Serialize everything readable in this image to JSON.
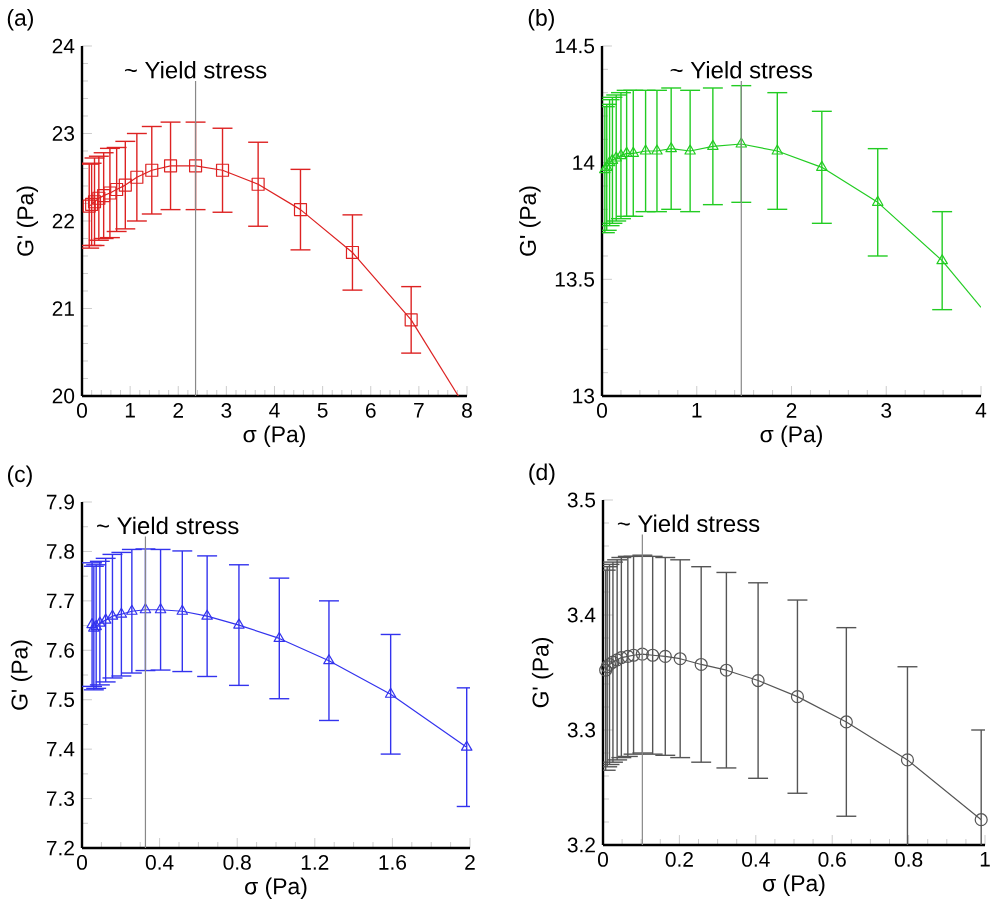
{
  "chart_data": [
    {
      "type": "line",
      "title": "(a)",
      "xlabel": "σ (Pa)",
      "ylabel": "G' (Pa)",
      "xlim": [
        0,
        8
      ],
      "ylim": [
        20,
        24
      ],
      "xticks": [
        0,
        1,
        2,
        3,
        4,
        5,
        6,
        7,
        8
      ],
      "yticks": [
        20,
        21,
        22,
        23,
        24
      ],
      "marker": "square",
      "grid": false,
      "ref_lines": [
        {
          "axis": "x",
          "value": 2.36,
          "label": "~ Yield stress",
          "color": "#888888"
        }
      ],
      "series": [
        {
          "color": "#dd2222",
          "x": [
            0.15,
            0.2,
            0.26,
            0.35,
            0.45,
            0.58,
            0.72,
            0.9,
            1.14,
            1.45,
            1.84,
            2.36,
            2.92,
            3.66,
            4.54,
            5.62,
            6.84
          ],
          "values": [
            22.17,
            22.19,
            22.22,
            22.26,
            22.29,
            22.32,
            22.36,
            22.41,
            22.5,
            22.58,
            22.63,
            22.63,
            22.58,
            22.42,
            22.13,
            21.64,
            20.87
          ],
          "errors": [
            0.48,
            0.47,
            0.5,
            0.48,
            0.49,
            0.51,
            0.48,
            0.5,
            0.5,
            0.5,
            0.5,
            0.5,
            0.48,
            0.48,
            0.46,
            0.43,
            0.38
          ]
        },
        {
          "color": "#dd2222",
          "marker": "none",
          "x": [
            6.84,
            7.82
          ],
          "values": [
            20.87,
            20
          ]
        }
      ]
    },
    {
      "type": "line",
      "title": "(b)",
      "xlabel": "σ (Pa)",
      "ylabel": "G' (Pa)",
      "xlim": [
        0,
        4
      ],
      "ylim": [
        13,
        14.5
      ],
      "xticks": [
        0,
        1,
        2,
        3,
        4
      ],
      "yticks": [
        13,
        13.5,
        14,
        14.5
      ],
      "marker": "triangle",
      "grid": false,
      "ref_lines": [
        {
          "axis": "x",
          "value": 1.47,
          "label": "~ Yield stress",
          "color": "#888888"
        }
      ],
      "series": [
        {
          "color": "#22cc22",
          "x": [
            0.03,
            0.05,
            0.08,
            0.11,
            0.15,
            0.2,
            0.26,
            0.33,
            0.46,
            0.58,
            0.73,
            0.93,
            1.17,
            1.47,
            1.85,
            2.32,
            2.91,
            3.59
          ],
          "values": [
            13.97,
            13.98,
            14.0,
            14.01,
            14.02,
            14.03,
            14.04,
            14.04,
            14.05,
            14.05,
            14.06,
            14.05,
            14.07,
            14.08,
            14.05,
            13.98,
            13.83,
            13.58
          ],
          "errors": [
            0.27,
            0.27,
            0.27,
            0.27,
            0.27,
            0.27,
            0.27,
            0.27,
            0.26,
            0.26,
            0.26,
            0.26,
            0.25,
            0.25,
            0.25,
            0.24,
            0.23,
            0.21
          ]
        },
        {
          "color": "#22cc22",
          "marker": "none",
          "x": [
            3.59,
            4
          ],
          "values": [
            13.58,
            13.38
          ]
        }
      ]
    },
    {
      "type": "line",
      "title": "(c)",
      "xlabel": "σ (Pa)",
      "ylabel": "G' (Pa)",
      "xlim": [
        0,
        2
      ],
      "ylim": [
        7.2,
        7.9
      ],
      "xticks": [
        0,
        0.4,
        0.8,
        1.2,
        1.6,
        2
      ],
      "yticks": [
        7.2,
        7.3,
        7.4,
        7.5,
        7.6,
        7.7,
        7.8,
        7.9
      ],
      "marker": "triangle",
      "grid": false,
      "ref_lines": [
        {
          "axis": "x",
          "value": 0.327,
          "label": "~ Yield stress",
          "color": "#888888"
        }
      ],
      "series": [
        {
          "color": "#3333ee",
          "x": [
            0.052,
            0.061,
            0.073,
            0.092,
            0.122,
            0.157,
            0.203,
            0.257,
            0.327,
            0.405,
            0.517,
            0.645,
            0.809,
            1.017,
            1.273,
            1.591,
            1.983
          ],
          "values": [
            7.652,
            7.645,
            7.648,
            7.655,
            7.661,
            7.669,
            7.673,
            7.679,
            7.682,
            7.682,
            7.679,
            7.669,
            7.651,
            7.624,
            7.579,
            7.511,
            7.404
          ],
          "errors": [
            0.125,
            0.125,
            0.125,
            0.125,
            0.125,
            0.125,
            0.125,
            0.125,
            0.123,
            0.122,
            0.122,
            0.122,
            0.122,
            0.122,
            0.121,
            0.121,
            0.12
          ]
        }
      ]
    },
    {
      "type": "line",
      "title": "(d)",
      "xlabel": "σ (Pa)",
      "ylabel": "G' (Pa)",
      "xlim": [
        0,
        1
      ],
      "ylim": [
        3.2,
        3.5
      ],
      "xticks": [
        0,
        0.2,
        0.4,
        0.6,
        0.8,
        1
      ],
      "yticks": [
        3.2,
        3.3,
        3.4,
        3.5
      ],
      "marker": "circle",
      "grid": false,
      "ref_lines": [
        {
          "axis": "x",
          "value": 0.103,
          "label": "~ Yield stress",
          "color": "#888888"
        }
      ],
      "series": [
        {
          "color": "#555555",
          "x": [
            0.007,
            0.011,
            0.017,
            0.026,
            0.037,
            0.048,
            0.065,
            0.08,
            0.103,
            0.13,
            0.163,
            0.202,
            0.257,
            0.323,
            0.406,
            0.509,
            0.637,
            0.797,
            0.99
          ],
          "values": [
            3.352,
            3.355,
            3.357,
            3.359,
            3.361,
            3.363,
            3.364,
            3.365,
            3.366,
            3.365,
            3.364,
            3.362,
            3.357,
            3.352,
            3.343,
            3.329,
            3.307,
            3.274,
            3.222
          ],
          "errors": [
            0.087,
            0.087,
            0.087,
            0.087,
            0.087,
            0.087,
            0.087,
            0.086,
            0.086,
            0.086,
            0.086,
            0.086,
            0.085,
            0.085,
            0.085,
            0.084,
            0.082,
            0.081,
            0.078
          ]
        }
      ]
    }
  ]
}
